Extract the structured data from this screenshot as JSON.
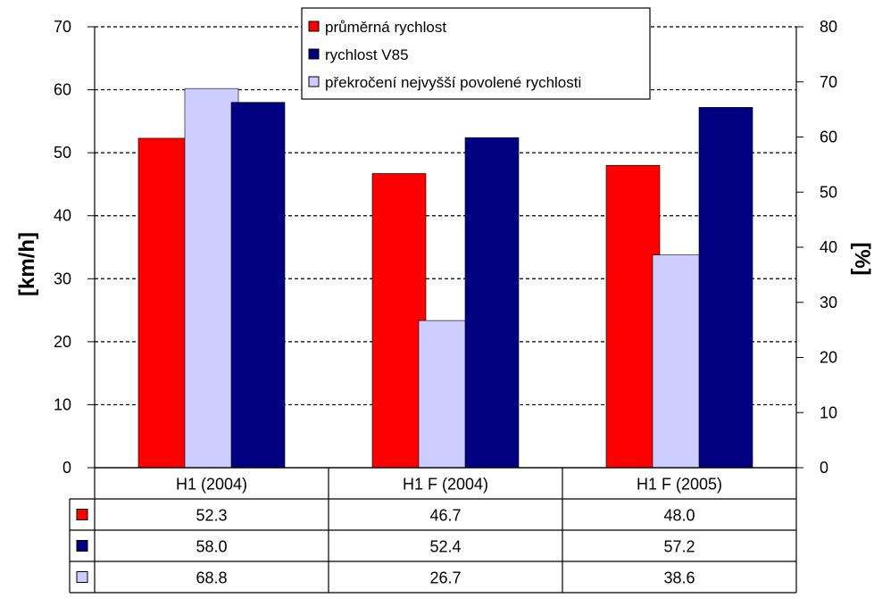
{
  "chart_data": {
    "type": "bar",
    "categories": [
      "H1 (2004)",
      "H1 F (2004)",
      "H1 F (2005)"
    ],
    "series": [
      {
        "name": "průměrná rychlost",
        "axis": "left",
        "color": "#ff0000",
        "values": [
          52.3,
          46.7,
          48.0
        ],
        "labels": [
          "52.3",
          "46.7",
          "48.0"
        ]
      },
      {
        "name": "překročení nejvyšší povolené rychlosti",
        "axis": "right",
        "color": "#ccccff",
        "values": [
          68.8,
          26.7,
          38.6
        ],
        "labels": [
          "68.8",
          "26.7",
          "38.6"
        ]
      },
      {
        "name": "rychlost V85",
        "axis": "left",
        "color": "#000080",
        "values": [
          58.0,
          52.4,
          57.2
        ],
        "labels": [
          "58.0",
          "52.4",
          "57.2"
        ]
      }
    ],
    "legend_order": [
      0,
      2,
      1
    ],
    "table_order": [
      0,
      2,
      1
    ],
    "ylabel": "[km/h]",
    "y2label": "[%]",
    "ylim": [
      0,
      70
    ],
    "y2lim": [
      0,
      80
    ],
    "yticks": [
      "0",
      "10",
      "20",
      "30",
      "40",
      "50",
      "60",
      "70"
    ],
    "y2ticks": [
      "0",
      "10",
      "20",
      "30",
      "40",
      "50",
      "60",
      "70",
      "80"
    ],
    "grid": "horizontal dashed",
    "legend_position": "top-center",
    "data_table": true
  }
}
